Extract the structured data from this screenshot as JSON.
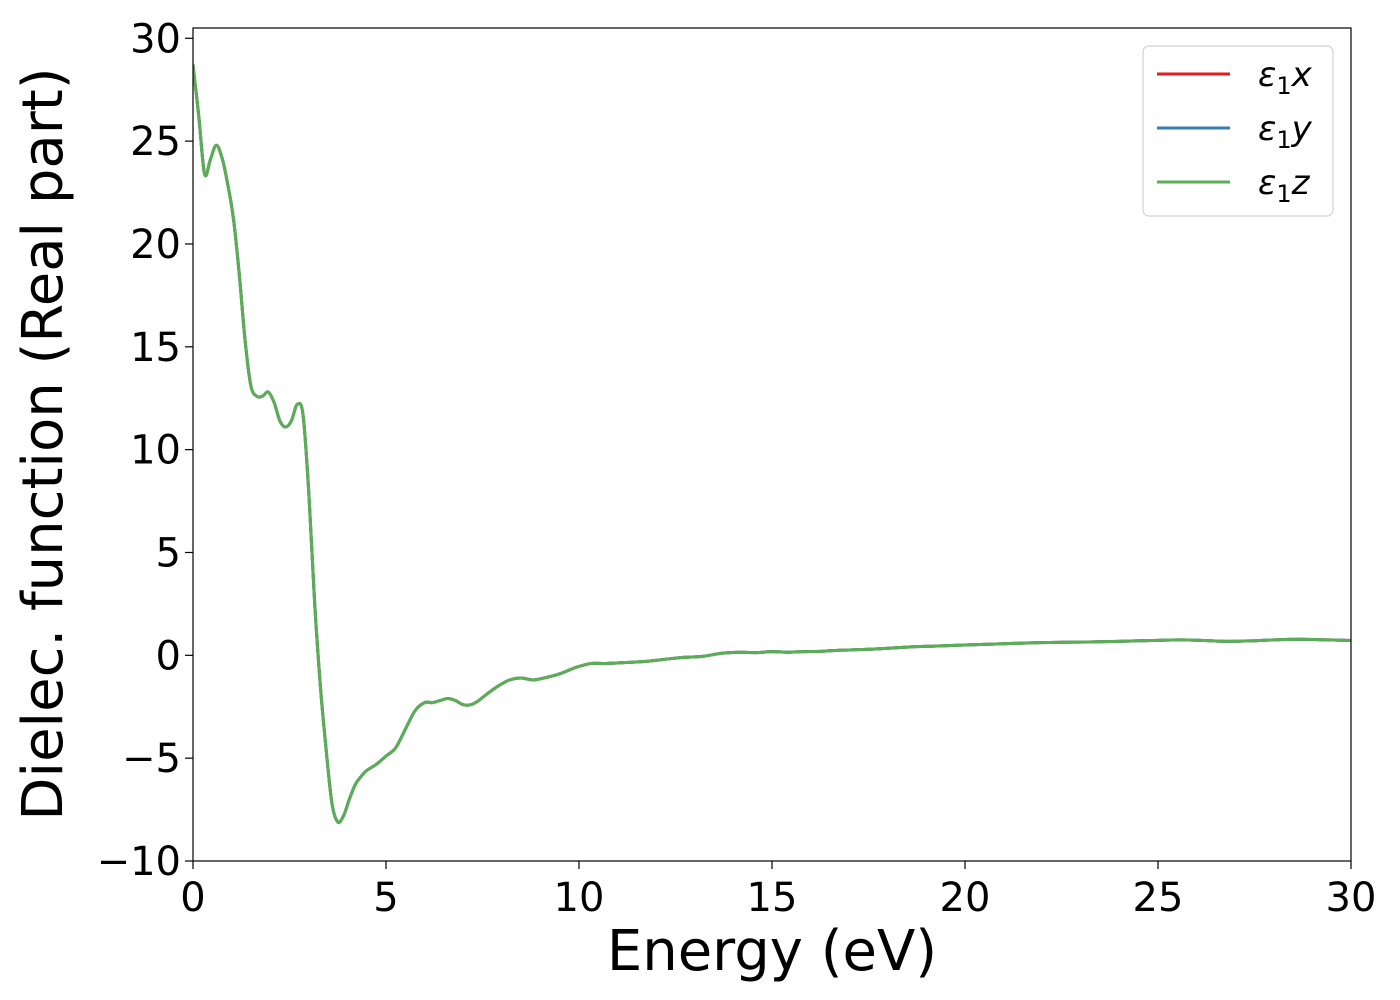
{
  "chart_data": {
    "type": "line",
    "title": "",
    "xlabel": "Energy (eV)",
    "ylabel": "Dielec. function (Real part)",
    "xlim": [
      0,
      30
    ],
    "ylim": [
      -10,
      30.5
    ],
    "xticks": [
      0,
      5,
      10,
      15,
      20,
      25,
      30
    ],
    "xtick_labels": [
      "0",
      "5",
      "10",
      "15",
      "20",
      "25",
      "30"
    ],
    "yticks": [
      -10,
      -5,
      0,
      5,
      10,
      15,
      20,
      25,
      30
    ],
    "ytick_labels": [
      "−10",
      "−5",
      "0",
      "5",
      "10",
      "15",
      "20",
      "25",
      "30"
    ],
    "grid": false,
    "legend_position": "top-right",
    "x": [
      0.0,
      0.15,
      0.3,
      0.45,
      0.6,
      0.75,
      0.9,
      1.05,
      1.2,
      1.35,
      1.5,
      1.65,
      1.8,
      1.95,
      2.1,
      2.25,
      2.4,
      2.55,
      2.7,
      2.85,
      3.0,
      3.15,
      3.3,
      3.45,
      3.6,
      3.75,
      3.9,
      4.05,
      4.2,
      4.35,
      4.5,
      4.75,
      5.0,
      5.25,
      5.5,
      5.75,
      6.0,
      6.2,
      6.4,
      6.6,
      6.8,
      7.0,
      7.2,
      7.4,
      7.6,
      7.9,
      8.2,
      8.5,
      8.8,
      9.1,
      9.5,
      9.9,
      10.3,
      10.7,
      11.2,
      11.7,
      12.2,
      12.7,
      13.2,
      13.7,
      14.2,
      14.6,
      15.0,
      15.4,
      15.8,
      16.3,
      16.8,
      17.3,
      17.8,
      18.5,
      19.2,
      20.0,
      20.8,
      21.6,
      22.4,
      23.2,
      24.0,
      24.8,
      25.6,
      26.2,
      26.8,
      27.4,
      28.0,
      28.6,
      29.2,
      30.0
    ],
    "series": [
      {
        "name": "ε₁x",
        "color": "#e41a1c",
        "values": [
          28.7,
          26.2,
          23.4,
          24.1,
          24.8,
          24.2,
          22.9,
          21.2,
          18.5,
          15.3,
          13.1,
          12.6,
          12.6,
          12.8,
          12.3,
          11.4,
          11.1,
          11.4,
          12.2,
          11.7,
          7.9,
          2.6,
          -1.5,
          -4.6,
          -7.2,
          -8.1,
          -7.8,
          -7.0,
          -6.3,
          -5.9,
          -5.6,
          -5.3,
          -4.9,
          -4.5,
          -3.6,
          -2.7,
          -2.3,
          -2.3,
          -2.2,
          -2.1,
          -2.2,
          -2.4,
          -2.4,
          -2.2,
          -1.9,
          -1.5,
          -1.2,
          -1.1,
          -1.2,
          -1.1,
          -0.9,
          -0.6,
          -0.4,
          -0.4,
          -0.35,
          -0.3,
          -0.2,
          -0.1,
          -0.05,
          0.1,
          0.15,
          0.13,
          0.18,
          0.15,
          0.18,
          0.2,
          0.25,
          0.28,
          0.32,
          0.4,
          0.45,
          0.5,
          0.55,
          0.6,
          0.63,
          0.65,
          0.68,
          0.72,
          0.75,
          0.72,
          0.68,
          0.7,
          0.75,
          0.78,
          0.76,
          0.72
        ]
      },
      {
        "name": "ε₁y",
        "color": "#377eb8",
        "values": [
          28.7,
          26.2,
          23.4,
          24.1,
          24.8,
          24.2,
          22.9,
          21.2,
          18.5,
          15.3,
          13.1,
          12.6,
          12.6,
          12.8,
          12.3,
          11.4,
          11.1,
          11.4,
          12.2,
          11.7,
          7.9,
          2.6,
          -1.5,
          -4.6,
          -7.2,
          -8.1,
          -7.8,
          -7.0,
          -6.3,
          -5.9,
          -5.6,
          -5.3,
          -4.9,
          -4.5,
          -3.6,
          -2.7,
          -2.3,
          -2.3,
          -2.2,
          -2.1,
          -2.2,
          -2.4,
          -2.4,
          -2.2,
          -1.9,
          -1.5,
          -1.2,
          -1.1,
          -1.2,
          -1.1,
          -0.9,
          -0.6,
          -0.4,
          -0.4,
          -0.35,
          -0.3,
          -0.2,
          -0.1,
          -0.05,
          0.1,
          0.15,
          0.13,
          0.18,
          0.15,
          0.18,
          0.2,
          0.25,
          0.28,
          0.32,
          0.4,
          0.45,
          0.5,
          0.55,
          0.6,
          0.63,
          0.65,
          0.68,
          0.72,
          0.75,
          0.72,
          0.68,
          0.7,
          0.75,
          0.78,
          0.76,
          0.72
        ]
      },
      {
        "name": "ε₁z",
        "color": "#5aae55",
        "values": [
          28.7,
          26.2,
          23.4,
          24.1,
          24.8,
          24.2,
          22.9,
          21.2,
          18.5,
          15.3,
          13.1,
          12.6,
          12.6,
          12.8,
          12.3,
          11.4,
          11.1,
          11.4,
          12.2,
          11.7,
          7.9,
          2.6,
          -1.5,
          -4.6,
          -7.2,
          -8.1,
          -7.8,
          -7.0,
          -6.3,
          -5.9,
          -5.6,
          -5.3,
          -4.9,
          -4.5,
          -3.6,
          -2.7,
          -2.3,
          -2.3,
          -2.2,
          -2.1,
          -2.2,
          -2.4,
          -2.4,
          -2.2,
          -1.9,
          -1.5,
          -1.2,
          -1.1,
          -1.2,
          -1.1,
          -0.9,
          -0.6,
          -0.4,
          -0.4,
          -0.35,
          -0.3,
          -0.2,
          -0.1,
          -0.05,
          0.1,
          0.15,
          0.13,
          0.18,
          0.15,
          0.18,
          0.2,
          0.25,
          0.28,
          0.32,
          0.4,
          0.45,
          0.5,
          0.55,
          0.6,
          0.63,
          0.65,
          0.68,
          0.72,
          0.75,
          0.72,
          0.68,
          0.7,
          0.75,
          0.78,
          0.76,
          0.72
        ]
      }
    ],
    "legend": [
      {
        "main": "ε",
        "sub": "1",
        "axis": "x",
        "color": "#e41a1c"
      },
      {
        "main": "ε",
        "sub": "1",
        "axis": "y",
        "color": "#377eb8"
      },
      {
        "main": "ε",
        "sub": "1",
        "axis": "z",
        "color": "#5aae55"
      }
    ]
  }
}
